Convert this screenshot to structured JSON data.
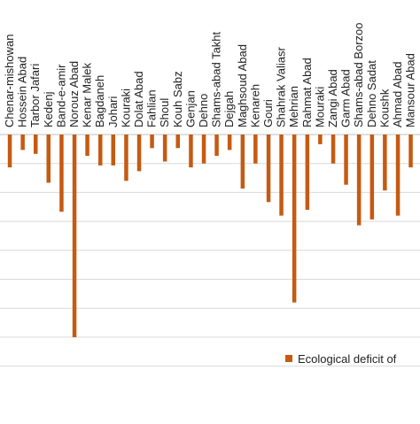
{
  "chart_data": {
    "type": "bar",
    "categories": [
      "Chenar-mishowan",
      "Hossein Abad",
      "Tarbor Jafari",
      "Kedenj",
      "Band-e-amir",
      "Norouz Abad",
      "Kenar Malek",
      "Bagdaneh",
      "Johari",
      "Kouraki",
      "Dolat Abad",
      "Fahlian",
      "Shoul",
      "Kouh Sabz",
      "Genjan",
      "Dehno",
      "Shams-abad Takht",
      "Dejgah",
      "Maghsoud Abad",
      "Kenareh",
      "Gouri",
      "Shahrak Valiasr",
      "Mehrian",
      "Rahmat Abad",
      "Mouraki",
      "Zangi Abad",
      "Garm Abad",
      "Shams-abad Borzoo",
      "Dehno Sadat",
      "Koushk",
      "Ahmad Abad",
      "Mansour Abad"
    ],
    "series": [
      {
        "name": "Ecological deficit of",
        "color": "#c55a11",
        "values": [
          -1.7,
          -0.8,
          -1.0,
          -2.5,
          -4.0,
          -10.5,
          -1.1,
          -1.6,
          -1.6,
          -2.4,
          -1.9,
          -0.7,
          -1.4,
          -0.7,
          -1.7,
          -1.5,
          -1.1,
          -0.8,
          -2.8,
          -1.5,
          -3.5,
          -4.2,
          -8.7,
          -3.9,
          -0.5,
          -1.5,
          -2.6,
          -4.7,
          -4.4,
          -2.9,
          -4.2,
          -1.7
        ]
      }
    ],
    "ylim": [
      -12,
      0
    ],
    "grid": true,
    "legend_position": "bottom-right"
  }
}
